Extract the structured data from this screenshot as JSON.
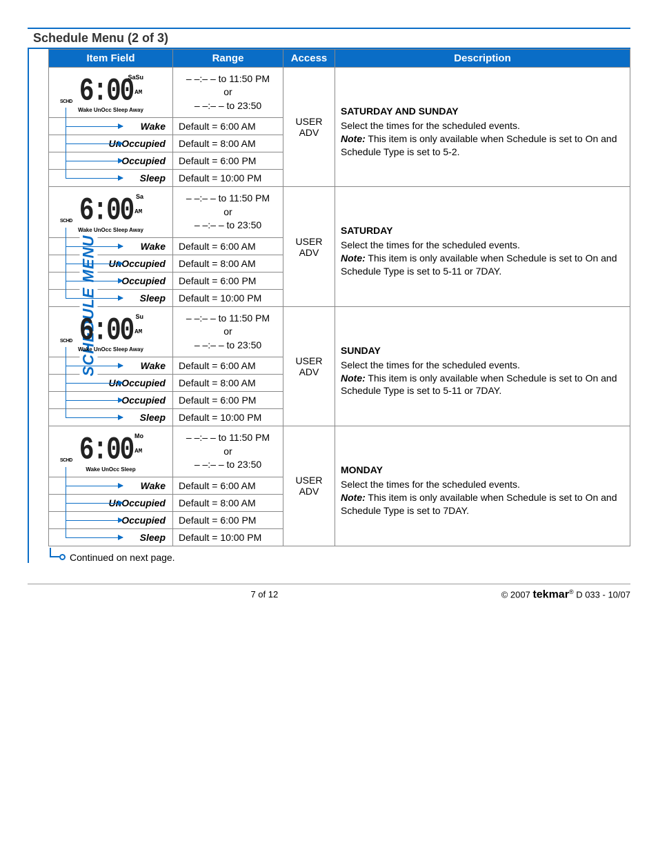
{
  "page_title": "Schedule Menu (2 of 3)",
  "side_label": "SCHEDULE MENU",
  "headers": {
    "item": "Item Field",
    "range": "Range",
    "access": "Access",
    "desc": "Description"
  },
  "range_main": {
    "l1": "– –:– – to 11:50 PM",
    "l2": "or",
    "l3": "– –:– – to 23:50"
  },
  "access": {
    "l1": "USER",
    "l2": "ADV"
  },
  "defaults": {
    "wake": "Default = 6:00 AM",
    "unocc": "Default = 8:00 AM",
    "occ": "Default = 6:00 PM",
    "sleep": "Default = 10:00 PM"
  },
  "events": {
    "wake": "Wake",
    "unocc": "UnOccupied",
    "occ": "Occupied",
    "sleep": "Sleep"
  },
  "lcd": {
    "sched": "SCHD",
    "time_digits": "6:00",
    "ampm": "AM",
    "bottom_full": "Wake UnOcc Sleep Away",
    "bottom_short": "Wake UnOcc Sleep"
  },
  "groups": [
    {
      "day_code": "SaSu",
      "title": "SATURDAY AND SUNDAY",
      "note": "This item is only available when Schedule is set to On and Schedule Type is set to 5-2.",
      "bottom_key": "bottom_full"
    },
    {
      "day_code": "Sa",
      "title": "SATURDAY",
      "note": "This item is only available when Schedule is set to On and Schedule Type is set to 5-11 or 7DAY.",
      "bottom_key": "bottom_full"
    },
    {
      "day_code": "Su",
      "title": "SUNDAY",
      "note": "This item is only available when Schedule is set to On and Schedule Type is set to 5-11 or 7DAY.",
      "bottom_key": "bottom_full"
    },
    {
      "day_code": "Mo",
      "title": "MONDAY",
      "note": "This item is only available when Schedule is set to On and Schedule Type is set to 7DAY.",
      "bottom_key": "bottom_short"
    }
  ],
  "desc_lead": "Select the times for the scheduled events.",
  "note_label": "Note:",
  "continued": "Continued on next page.",
  "footer": {
    "page": "7 of 12",
    "copy": "© 2007",
    "brand": "tekmar",
    "doc": "D 033 - 10/07"
  },
  "colors": {
    "accent": "#0a6dc6",
    "border": "#888888"
  }
}
